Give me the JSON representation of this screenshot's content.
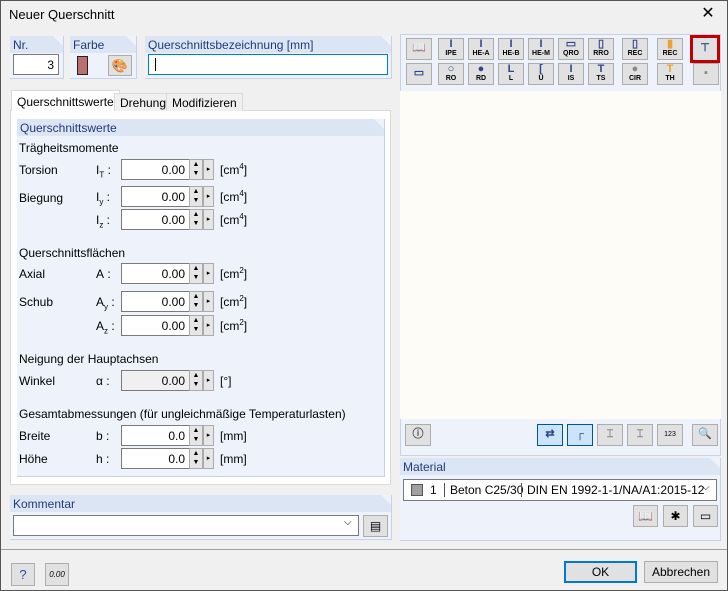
{
  "window": {
    "title": "Neuer Querschnitt",
    "close": "✕"
  },
  "nr": {
    "label": "Nr.",
    "value": "3"
  },
  "farbe": {
    "label": "Farbe",
    "color": "#b87070"
  },
  "bezeichnung": {
    "label": "Querschnittsbezeichnung [mm]",
    "value": ""
  },
  "tabs": [
    "Querschnittswerte",
    "Drehung",
    "Modifizieren"
  ],
  "section": {
    "title": "Querschnittswerte",
    "traeg": "Trägheitsmomente",
    "torsion": "Torsion",
    "biegung": "Biegung",
    "flaechen": "Querschnittsflächen",
    "axial": "Axial",
    "schub": "Schub",
    "neigung": "Neigung der Hauptachsen",
    "winkel": "Winkel",
    "gesamt": "Gesamtabmessungen (für ungleichmäßige Temperaturlasten)",
    "breite": "Breite",
    "hoehe": "Höhe",
    "fields": [
      {
        "sym": "I",
        "sub": "T",
        "value": "0.00",
        "unit": "[cm",
        "exp": "4"
      },
      {
        "sym": "I",
        "sub": "y",
        "value": "0.00",
        "unit": "[cm",
        "exp": "4"
      },
      {
        "sym": "I",
        "sub": "z",
        "value": "0.00",
        "unit": "[cm",
        "exp": "4"
      },
      {
        "sym": "A",
        "sub": "",
        "value": "0.00",
        "unit": "[cm",
        "exp": "2"
      },
      {
        "sym": "A",
        "sub": "y",
        "value": "0.00",
        "unit": "[cm",
        "exp": "2"
      },
      {
        "sym": "A",
        "sub": "z",
        "value": "0.00",
        "unit": "[cm",
        "exp": "2"
      },
      {
        "sym": "α",
        "sub": "",
        "value": "0.00",
        "unit": "[°]",
        "exp": ""
      },
      {
        "sym": "b",
        "sub": "",
        "value": "0.0",
        "unit": "[mm]",
        "exp": ""
      },
      {
        "sym": "h",
        "sub": "",
        "value": "0.0",
        "unit": "[mm]",
        "exp": ""
      }
    ]
  },
  "unit_close": "]",
  "kommentar": {
    "label": "Kommentar",
    "value": ""
  },
  "toolbar": {
    "row1": [
      "IPE",
      "HE-A",
      "HE-B",
      "HE-M",
      "QRO",
      "RRO",
      "REC",
      "REC"
    ],
    "row2": [
      "RO",
      "RD",
      "L",
      "U",
      "IS",
      "TS",
      "CIR",
      "TH"
    ]
  },
  "preview_toolbar": {
    "numbers": "123"
  },
  "material": {
    "label": "Material",
    "number": "1",
    "name": "Beton C25/30",
    "norm": "DIN EN 1992-1-1/NA/A1:2015-12"
  },
  "footer": {
    "ok": "OK",
    "cancel": "Abbrechen",
    "zero": "0.00"
  }
}
